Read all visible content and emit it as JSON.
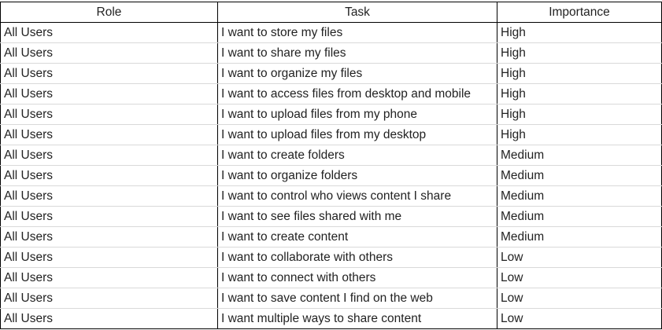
{
  "table": {
    "headers": [
      "Role",
      "Task",
      "Importance"
    ],
    "rows": [
      {
        "role": "All Users",
        "task": "I want to store my files",
        "importance": "High"
      },
      {
        "role": "All Users",
        "task": "I want to share my files",
        "importance": "High"
      },
      {
        "role": "All Users",
        "task": "I want to organize my files",
        "importance": "High"
      },
      {
        "role": "All Users",
        "task": "I want to access files from desktop and mobile",
        "importance": "High"
      },
      {
        "role": "All Users",
        "task": "I want to upload files from my phone",
        "importance": "High"
      },
      {
        "role": "All Users",
        "task": "I want to upload files from my desktop",
        "importance": "High"
      },
      {
        "role": "All Users",
        "task": "I want to create folders",
        "importance": "Medium"
      },
      {
        "role": "All Users",
        "task": "I want to organize folders",
        "importance": "Medium"
      },
      {
        "role": "All Users",
        "task": "I want to control who views content I share",
        "importance": "Medium"
      },
      {
        "role": "All Users",
        "task": "I want to see files shared with me",
        "importance": "Medium"
      },
      {
        "role": "All Users",
        "task": "I want to create content",
        "importance": "Medium"
      },
      {
        "role": "All Users",
        "task": "I want to collaborate with others",
        "importance": "Low"
      },
      {
        "role": "All Users",
        "task": "I want to connect with others",
        "importance": "Low"
      },
      {
        "role": "All Users",
        "task": "I want to save content I find on the web",
        "importance": "Low"
      },
      {
        "role": "All Users",
        "task": "I want multiple ways to share content",
        "importance": "Low"
      }
    ]
  }
}
